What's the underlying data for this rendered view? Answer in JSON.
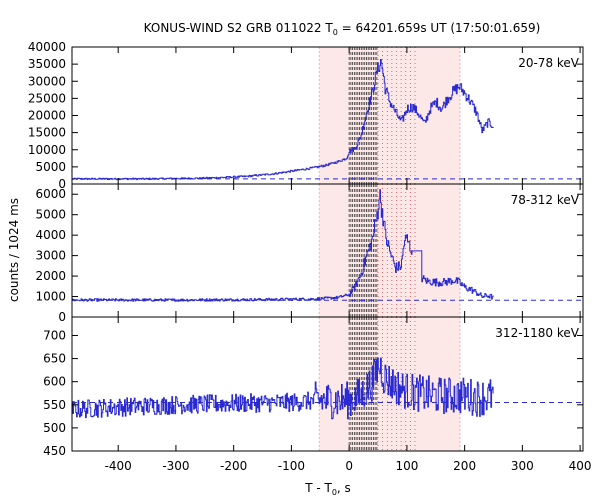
{
  "title_prefix": "KONUS-WIND S2 GRB 011022 T",
  "title_sub": "0",
  "title_suffix": " = 64201.659s UT (17:50:01.659)",
  "ylabel": "counts / 1024 ms",
  "xlabel_prefix": "T - T",
  "xlabel_sub": "0",
  "xlabel_suffix": ", s",
  "colors": {
    "data": "#2a2ad0",
    "background_level": "#2a2ad0",
    "shade": "#fde8e8",
    "shade_edge": "#e88a8a",
    "dense_lines": "#333333",
    "red_dotted": "#cc3333"
  },
  "chart_data": {
    "type": "line",
    "x_range": [
      -480,
      405
    ],
    "x_ticks": [
      -400,
      -300,
      -200,
      -100,
      0,
      100,
      200,
      300,
      400
    ],
    "shaded_interval": [
      -52,
      192
    ],
    "dense_dashed_interval": [
      0,
      50
    ],
    "red_dotted_interval": [
      50,
      120
    ],
    "panels": [
      {
        "energy_label": "20-78 keV",
        "ylim": [
          0,
          40000
        ],
        "y_ticks": [
          0,
          5000,
          10000,
          15000,
          20000,
          25000,
          30000,
          35000,
          40000
        ],
        "background_level": 1500,
        "series": [
          [
            -480,
            1500
          ],
          [
            -350,
            1500
          ],
          [
            -250,
            1700
          ],
          [
            -180,
            2200
          ],
          [
            -130,
            3000
          ],
          [
            -90,
            4000
          ],
          [
            -60,
            4800
          ],
          [
            -40,
            5500
          ],
          [
            -20,
            6500
          ],
          [
            -5,
            7500
          ],
          [
            0,
            9500
          ],
          [
            10,
            10500
          ],
          [
            20,
            14000
          ],
          [
            30,
            21000
          ],
          [
            40,
            27000
          ],
          [
            48,
            33000
          ],
          [
            55,
            36000
          ],
          [
            62,
            28000
          ],
          [
            70,
            24000
          ],
          [
            80,
            21000
          ],
          [
            90,
            18000
          ],
          [
            100,
            22000
          ],
          [
            110,
            22500
          ],
          [
            120,
            20500
          ],
          [
            130,
            17500
          ],
          [
            140,
            22000
          ],
          [
            150,
            24000
          ],
          [
            160,
            22000
          ],
          [
            170,
            25000
          ],
          [
            180,
            27000
          ],
          [
            190,
            28500
          ],
          [
            200,
            26500
          ],
          [
            210,
            24000
          ],
          [
            220,
            21000
          ],
          [
            230,
            15500
          ],
          [
            240,
            18000
          ],
          [
            250,
            17000
          ]
        ]
      },
      {
        "energy_label": "78-312 keV",
        "ylim": [
          0,
          6500
        ],
        "y_ticks": [
          0,
          1000,
          2000,
          3000,
          4000,
          5000,
          6000
        ],
        "background_level": 820,
        "series": [
          [
            -480,
            830
          ],
          [
            -300,
            830
          ],
          [
            -150,
            850
          ],
          [
            -60,
            880
          ],
          [
            -20,
            950
          ],
          [
            0,
            1100
          ],
          [
            10,
            1500
          ],
          [
            20,
            2100
          ],
          [
            30,
            3000
          ],
          [
            40,
            3800
          ],
          [
            48,
            5000
          ],
          [
            52,
            6000
          ],
          [
            58,
            5000
          ],
          [
            62,
            4000
          ],
          [
            70,
            3200
          ],
          [
            80,
            2400
          ],
          [
            90,
            2500
          ],
          [
            95,
            3700
          ],
          [
            100,
            3800
          ],
          [
            105,
            3400
          ],
          [
            110,
            3300
          ],
          [
            125,
            1900
          ],
          [
            135,
            1750
          ],
          [
            150,
            1700
          ],
          [
            165,
            1700
          ],
          [
            180,
            1800
          ],
          [
            190,
            1700
          ],
          [
            200,
            1450
          ],
          [
            210,
            1350
          ],
          [
            220,
            1200
          ],
          [
            230,
            1000
          ],
          [
            240,
            1050
          ],
          [
            250,
            950
          ]
        ]
      },
      {
        "energy_label": "312-1180 keV",
        "ylim": [
          450,
          740
        ],
        "y_ticks": [
          450,
          500,
          550,
          600,
          650,
          700
        ],
        "background_level": 555,
        "series": [
          [
            -480,
            540
          ],
          [
            -400,
            545
          ],
          [
            -300,
            550
          ],
          [
            -200,
            553
          ],
          [
            -100,
            555
          ],
          [
            -50,
            560
          ],
          [
            0,
            560
          ],
          [
            20,
            570
          ],
          [
            40,
            600
          ],
          [
            50,
            635
          ],
          [
            55,
            630
          ],
          [
            60,
            610
          ],
          [
            80,
            590
          ],
          [
            100,
            580
          ],
          [
            120,
            575
          ],
          [
            150,
            570
          ],
          [
            180,
            570
          ],
          [
            200,
            570
          ],
          [
            225,
            565
          ],
          [
            250,
            570
          ]
        ]
      }
    ]
  }
}
